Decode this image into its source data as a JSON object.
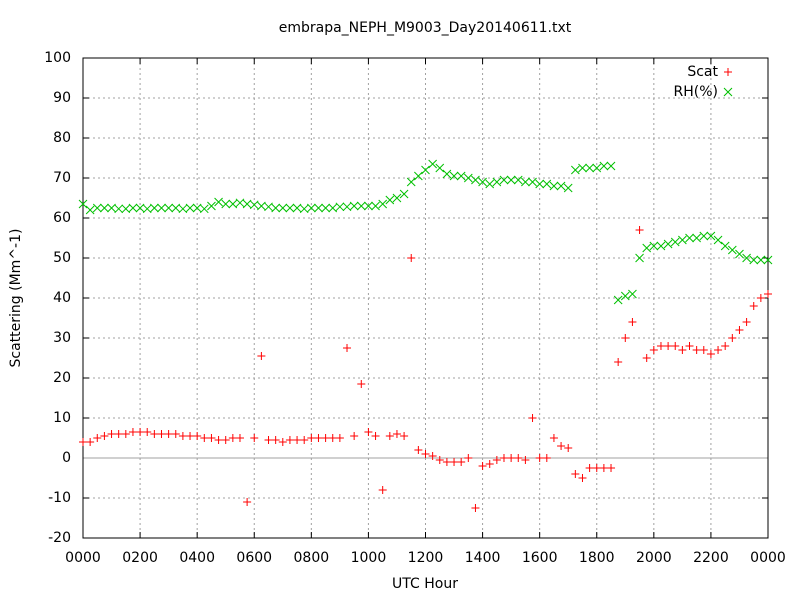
{
  "chart_data": {
    "type": "scatter",
    "title": "embrapa_NEPH_M9003_Day20140611.txt",
    "x_label": "UTC Hour",
    "y_label": "Scattering (Mm^-1)",
    "x": [
      0,
      0.25,
      0.5,
      0.75,
      1,
      1.25,
      1.5,
      1.75,
      2,
      2.25,
      2.5,
      2.75,
      3,
      3.25,
      3.5,
      3.75,
      4,
      4.25,
      4.5,
      4.75,
      5,
      5.25,
      5.5,
      5.75,
      6,
      6.25,
      6.5,
      6.75,
      7,
      7.25,
      7.5,
      7.75,
      8,
      8.25,
      8.5,
      8.75,
      9,
      9.25,
      9.5,
      9.75,
      10,
      10.25,
      10.5,
      10.75,
      11,
      11.25,
      11.5,
      11.75,
      12,
      12.25,
      12.5,
      12.75,
      13,
      13.25,
      13.5,
      13.75,
      14,
      14.25,
      14.5,
      14.75,
      15,
      15.25,
      15.5,
      15.75,
      16,
      16.25,
      16.5,
      16.75,
      17,
      17.25,
      17.5,
      17.75,
      18,
      18.25,
      18.5,
      18.75,
      19,
      19.25,
      19.5,
      19.75,
      20,
      20.25,
      20.5,
      20.75,
      21,
      21.25,
      21.5,
      21.75,
      22,
      22.25,
      22.5,
      22.75,
      23,
      23.25,
      23.5,
      23.75,
      24
    ],
    "series": [
      {
        "name": "Scat",
        "color": "#ff0000",
        "marker": "plus",
        "values": [
          4,
          4,
          5,
          5.5,
          6,
          6,
          6,
          6.5,
          6.5,
          6.5,
          6,
          6,
          6,
          6,
          5.5,
          5.5,
          5.5,
          5,
          5,
          4.5,
          4.5,
          5,
          5,
          -11,
          5,
          25.5,
          4.5,
          4.5,
          4,
          4.5,
          4.5,
          4.5,
          5,
          5,
          5,
          5,
          5,
          27.5,
          5.5,
          18.5,
          6.5,
          5.5,
          -8,
          5.5,
          6,
          5.5,
          50,
          2,
          1,
          0.5,
          -0.5,
          -1,
          -1,
          -1,
          0,
          -12.5,
          -2,
          -1.5,
          -0.5,
          0,
          0,
          0,
          -0.5,
          10,
          0,
          0,
          5,
          3,
          2.5,
          -4,
          -5,
          -2.5,
          -2.5,
          -2.5,
          -2.5,
          24,
          30,
          34,
          57,
          25,
          27,
          28,
          28,
          28,
          27,
          28,
          27,
          27,
          26,
          27,
          28,
          30,
          32,
          34,
          38,
          40,
          41
        ]
      },
      {
        "name": "RH(%)",
        "color": "#00c000",
        "marker": "cross",
        "values": [
          63.5,
          62,
          62.5,
          62.5,
          62.5,
          62.3,
          62.3,
          62.5,
          62.5,
          62.3,
          62.5,
          62.5,
          62.5,
          62.5,
          62.3,
          62.5,
          62.5,
          62.3,
          63,
          64,
          63.5,
          63.5,
          63.8,
          63.5,
          63.3,
          63,
          62.8,
          62.5,
          62.5,
          62.5,
          62.5,
          62.3,
          62.5,
          62.5,
          62.5,
          62.5,
          62.8,
          62.8,
          63,
          63,
          63,
          63,
          63.5,
          64.5,
          65,
          66,
          69,
          70.5,
          72,
          73.5,
          72.5,
          71,
          70.5,
          70.5,
          70,
          69.5,
          69,
          68.5,
          69,
          69.5,
          69.5,
          69.5,
          69,
          69,
          68.5,
          68.5,
          68,
          68,
          67.5,
          72,
          72.5,
          72.5,
          72.5,
          73,
          73,
          39.5,
          40.5,
          41,
          50,
          52.5,
          53,
          53,
          53.5,
          54,
          54.5,
          55,
          55,
          55.5,
          55.5,
          54.5,
          53,
          52,
          51,
          50,
          49.5,
          49.5,
          49.5
        ]
      }
    ],
    "xlim": [
      0,
      24
    ],
    "xticks": [
      {
        "value": 0,
        "label": "0000"
      },
      {
        "value": 2,
        "label": "0200"
      },
      {
        "value": 4,
        "label": "0400"
      },
      {
        "value": 6,
        "label": "0600"
      },
      {
        "value": 8,
        "label": "0800"
      },
      {
        "value": 10,
        "label": "1000"
      },
      {
        "value": 12,
        "label": "1200"
      },
      {
        "value": 14,
        "label": "1400"
      },
      {
        "value": 16,
        "label": "1600"
      },
      {
        "value": 18,
        "label": "1800"
      },
      {
        "value": 20,
        "label": "2000"
      },
      {
        "value": 22,
        "label": "2200"
      },
      {
        "value": 24,
        "label": "0000"
      }
    ],
    "ylim": [
      -20,
      100
    ],
    "yticks": [
      -20,
      -10,
      0,
      10,
      20,
      30,
      40,
      50,
      60,
      70,
      80,
      90,
      100
    ],
    "grid": true,
    "legend": "top right"
  }
}
